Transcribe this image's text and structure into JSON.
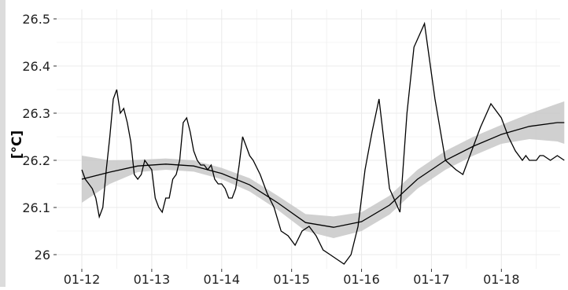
{
  "chart_data": {
    "type": "line",
    "title": "",
    "xlabel": "",
    "ylabel": "[°C]",
    "grid": true,
    "legend": "none",
    "x_tick_labels": [
      "01-12",
      "01-13",
      "01-14",
      "01-15",
      "01-16",
      "01-17",
      "01-18"
    ],
    "y_tick_labels": [
      "26",
      "26.1",
      "26.2",
      "26.3",
      "26.4",
      "26.5"
    ],
    "ylim": [
      25.97,
      26.52
    ],
    "xlim": [
      0,
      7.2
    ],
    "colors": {
      "line": "#000000",
      "band": "#c8c8c8",
      "grid": "#ebebeb",
      "side_bar": "#dcdcdc"
    },
    "series": [
      {
        "kind": "observed",
        "x": [
          0.0,
          0.05,
          0.1,
          0.15,
          0.2,
          0.25,
          0.3,
          0.35,
          0.4,
          0.45,
          0.5,
          0.55,
          0.6,
          0.65,
          0.7,
          0.75,
          0.8,
          0.85,
          0.9,
          0.95,
          1.0,
          1.05,
          1.1,
          1.15,
          1.2,
          1.25,
          1.3,
          1.35,
          1.4,
          1.45,
          1.5,
          1.55,
          1.6,
          1.65,
          1.7,
          1.75,
          1.8,
          1.85,
          1.9,
          1.95,
          2.0,
          2.05,
          2.1,
          2.15,
          2.2,
          2.25,
          2.3,
          2.35,
          2.4,
          2.45,
          2.55,
          2.65,
          2.75,
          2.85,
          2.95,
          3.05,
          3.15,
          3.25,
          3.35,
          3.45,
          3.55,
          3.65,
          3.75,
          3.85,
          3.95,
          4.05,
          4.15,
          4.25,
          4.4,
          4.55,
          4.65,
          4.75,
          4.9,
          5.05,
          5.2,
          5.35,
          5.45,
          5.55,
          5.7,
          5.85,
          6.0,
          6.1,
          6.2,
          6.3,
          6.35,
          6.4,
          6.5,
          6.55,
          6.6,
          6.7,
          6.8,
          6.9
        ],
        "y": [
          26.18,
          26.16,
          26.15,
          26.14,
          26.12,
          26.08,
          26.1,
          26.18,
          26.25,
          26.33,
          26.35,
          26.3,
          26.31,
          26.28,
          26.24,
          26.17,
          26.16,
          26.17,
          26.2,
          26.19,
          26.18,
          26.12,
          26.1,
          26.09,
          26.12,
          26.12,
          26.16,
          26.17,
          26.2,
          26.28,
          26.29,
          26.26,
          26.22,
          26.2,
          26.19,
          26.19,
          26.18,
          26.19,
          26.16,
          26.15,
          26.15,
          26.14,
          26.12,
          26.12,
          26.14,
          26.19,
          26.25,
          26.23,
          26.21,
          26.2,
          26.17,
          26.13,
          26.1,
          26.05,
          26.04,
          26.02,
          26.05,
          26.06,
          26.04,
          26.01,
          26.0,
          25.99,
          25.98,
          26.0,
          26.06,
          26.18,
          26.26,
          26.33,
          26.14,
          26.09,
          26.3,
          26.44,
          26.49,
          26.33,
          26.2,
          26.18,
          26.17,
          26.21,
          26.27,
          26.32,
          26.29,
          26.25,
          26.22,
          26.2,
          26.21,
          26.2,
          26.2,
          26.21,
          26.21,
          26.2,
          26.21,
          26.2
        ]
      },
      {
        "kind": "smooth",
        "x": [
          0.0,
          0.4,
          0.8,
          1.2,
          1.6,
          2.0,
          2.4,
          2.8,
          3.2,
          3.6,
          4.0,
          4.4,
          4.8,
          5.2,
          5.6,
          6.0,
          6.4,
          6.8,
          6.9
        ],
        "y": [
          26.16,
          26.175,
          26.188,
          26.192,
          26.188,
          26.172,
          26.148,
          26.11,
          26.068,
          26.058,
          26.07,
          26.105,
          26.16,
          26.2,
          26.23,
          26.255,
          26.272,
          26.28,
          26.28
        ],
        "lower": [
          26.11,
          26.15,
          26.175,
          26.18,
          26.176,
          26.16,
          26.134,
          26.095,
          26.05,
          26.035,
          26.05,
          26.085,
          26.14,
          26.18,
          26.21,
          26.235,
          26.245,
          26.24,
          26.235
        ],
        "upper": [
          26.21,
          26.2,
          26.201,
          26.204,
          26.2,
          26.184,
          26.162,
          26.125,
          26.086,
          26.081,
          26.09,
          26.125,
          26.18,
          26.22,
          26.25,
          26.275,
          26.299,
          26.32,
          26.325
        ]
      }
    ]
  }
}
